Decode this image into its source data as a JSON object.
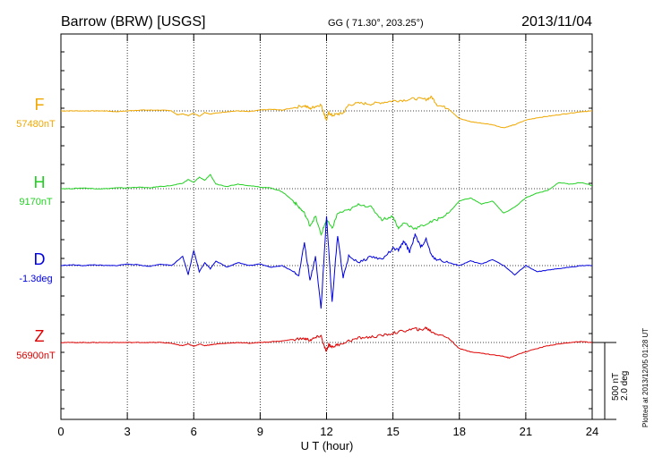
{
  "header": {
    "station": "Barrow (BRW)  [USGS]",
    "coords": "GG ( 71.30°, 203.25°)",
    "date": "2013/11/04"
  },
  "footer_note": "Plotted at 2013/12/05 01:28 UT",
  "scale_bar": {
    "line1": "500 nT",
    "line2": "2.0 deg"
  },
  "chart_data": {
    "type": "line",
    "xlabel": "U T (hour)",
    "xlim": [
      0,
      24
    ],
    "x_ticks": [
      "0",
      "3",
      "6",
      "9",
      "12",
      "15",
      "18",
      "21",
      "24"
    ],
    "grid": true,
    "units_note": "offset from baseline, nT (D: scaled, 500 nT bar = 2.0 deg)",
    "series": [
      {
        "name": "F",
        "baseline_label": "57480nT",
        "color": "#f0a800",
        "x": [
          0,
          0.5,
          1,
          1.5,
          2,
          2.5,
          3,
          3.5,
          4,
          4.5,
          5,
          5.25,
          5.5,
          5.75,
          6,
          6.25,
          6.5,
          6.75,
          7,
          7.5,
          8,
          8.5,
          9,
          9.5,
          10,
          10.5,
          11,
          11.25,
          11.5,
          11.75,
          11.9,
          12,
          12.1,
          12.25,
          12.5,
          12.75,
          13,
          13.5,
          14,
          14.5,
          15,
          15.5,
          16,
          16.5,
          16.75,
          17,
          17.5,
          18,
          18.5,
          19,
          19.5,
          20,
          20.25,
          20.5,
          21,
          21.5,
          22,
          22.5,
          23,
          23.5,
          24
        ],
        "y": [
          0,
          0,
          0,
          0,
          0,
          -5,
          0,
          5,
          5,
          5,
          0,
          -25,
          -20,
          -30,
          -15,
          -35,
          -10,
          -20,
          -15,
          -5,
          0,
          -5,
          5,
          10,
          5,
          20,
          35,
          15,
          30,
          40,
          -20,
          -60,
          -10,
          -30,
          -20,
          -15,
          40,
          50,
          45,
          55,
          65,
          70,
          80,
          75,
          90,
          40,
          15,
          -50,
          -70,
          -80,
          -90,
          -110,
          -100,
          -90,
          -60,
          -45,
          -35,
          -25,
          -15,
          -5,
          0
        ]
      },
      {
        "name": "H",
        "baseline_label": "9170nT",
        "color": "#22d022",
        "x": [
          0,
          0.5,
          1,
          1.5,
          2,
          2.5,
          3,
          3.5,
          4,
          4.5,
          5,
          5.5,
          5.75,
          6,
          6.25,
          6.5,
          6.75,
          7,
          7.5,
          8,
          8.5,
          9,
          9.5,
          10,
          10.5,
          10.75,
          11,
          11.25,
          11.5,
          11.75,
          12,
          12.25,
          12.5,
          13,
          13.5,
          14,
          14.5,
          15,
          15.25,
          15.5,
          16,
          16.5,
          17,
          17.5,
          18,
          18.5,
          19,
          19.5,
          20,
          20.5,
          21,
          21.5,
          22,
          22.5,
          23,
          23.5,
          24
        ],
        "y": [
          0,
          0,
          5,
          0,
          0,
          5,
          5,
          10,
          5,
          15,
          20,
          35,
          60,
          40,
          75,
          55,
          90,
          30,
          15,
          30,
          20,
          10,
          5,
          -20,
          -80,
          -120,
          -160,
          -240,
          -180,
          -300,
          -200,
          -260,
          -160,
          -140,
          -100,
          -120,
          -200,
          -180,
          -260,
          -220,
          -260,
          -230,
          -200,
          -160,
          -80,
          -60,
          -100,
          -80,
          -160,
          -120,
          -60,
          -30,
          -10,
          40,
          30,
          40,
          20
        ]
      },
      {
        "name": "D",
        "baseline_label": "-1.3deg",
        "color": "#0000e0",
        "x": [
          0,
          0.5,
          1,
          1.5,
          2,
          2.5,
          3,
          3.5,
          4,
          4.5,
          5,
          5.5,
          5.75,
          6,
          6.25,
          6.5,
          6.75,
          7,
          7.5,
          8,
          8.5,
          9,
          9.5,
          10,
          10.5,
          10.75,
          11,
          11.25,
          11.5,
          11.75,
          12,
          12.25,
          12.5,
          12.75,
          13,
          13.5,
          14,
          14.5,
          15,
          15.25,
          15.5,
          15.75,
          16,
          16.25,
          16.5,
          16.75,
          17,
          17.5,
          18,
          18.5,
          19,
          19.5,
          20,
          20.5,
          21,
          21.5,
          22,
          22.5,
          23,
          23.5,
          24
        ],
        "y": [
          0,
          5,
          0,
          5,
          0,
          0,
          10,
          5,
          -5,
          10,
          0,
          60,
          -60,
          100,
          -40,
          20,
          -20,
          30,
          -10,
          20,
          0,
          10,
          -10,
          0,
          -40,
          -60,
          150,
          -100,
          60,
          -280,
          320,
          -240,
          200,
          -80,
          60,
          20,
          60,
          40,
          110,
          100,
          160,
          90,
          200,
          120,
          170,
          60,
          40,
          20,
          0,
          30,
          10,
          40,
          0,
          -60,
          0,
          -40,
          -30,
          -20,
          -10,
          0,
          0
        ]
      },
      {
        "name": "Z",
        "baseline_label": "56900nT",
        "color": "#e00000",
        "x": [
          0,
          0.5,
          1,
          1.5,
          2,
          2.5,
          3,
          3.5,
          4,
          4.5,
          5,
          5.25,
          5.5,
          5.75,
          6,
          6.25,
          6.5,
          6.75,
          7,
          7.5,
          8,
          8.5,
          9,
          9.5,
          10,
          10.5,
          11,
          11.25,
          11.5,
          11.75,
          11.9,
          12,
          12.1,
          12.25,
          12.5,
          13,
          13.5,
          14,
          14.5,
          15,
          15.5,
          16,
          16.25,
          16.5,
          16.75,
          17,
          17.5,
          18,
          18.5,
          19,
          19.5,
          20,
          20.25,
          20.5,
          21,
          21.5,
          22,
          22.5,
          23,
          23.5,
          24
        ],
        "y": [
          0,
          0,
          0,
          0,
          0,
          0,
          0,
          0,
          0,
          0,
          -5,
          -15,
          -20,
          -10,
          -25,
          -10,
          -20,
          -15,
          -10,
          -5,
          0,
          -5,
          0,
          5,
          10,
          20,
          25,
          15,
          30,
          45,
          -30,
          -60,
          -10,
          -30,
          -15,
          10,
          30,
          35,
          45,
          60,
          75,
          90,
          80,
          95,
          70,
          55,
          30,
          -40,
          -60,
          -70,
          -80,
          -90,
          -100,
          -85,
          -60,
          -40,
          -20,
          -10,
          0,
          5,
          0
        ]
      }
    ]
  }
}
